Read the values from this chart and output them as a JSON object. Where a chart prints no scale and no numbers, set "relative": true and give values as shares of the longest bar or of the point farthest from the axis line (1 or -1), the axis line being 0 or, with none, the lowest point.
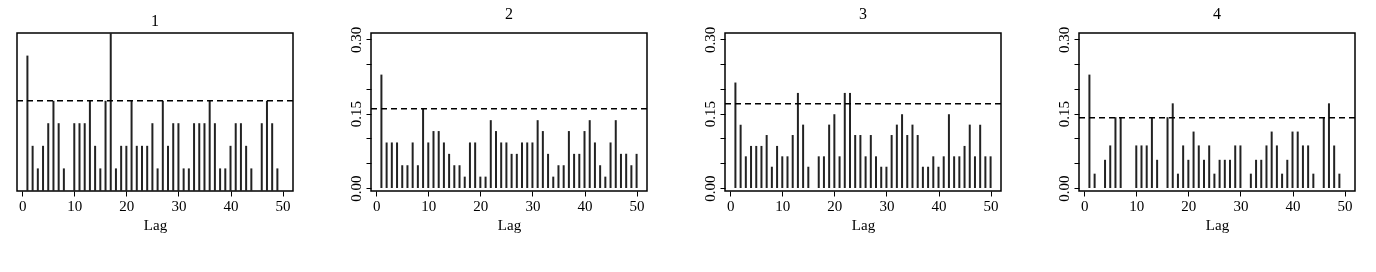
{
  "chart_data": [
    {
      "type": "bar",
      "title": "1",
      "xlabel": "Lag",
      "relative": true,
      "color": "#222222",
      "x": [
        1,
        2,
        3,
        4,
        5,
        6,
        7,
        8,
        9,
        10,
        11,
        12,
        13,
        14,
        15,
        16,
        17,
        18,
        19,
        20,
        21,
        22,
        23,
        24,
        25,
        26,
        27,
        28,
        29,
        30,
        31,
        32,
        33,
        34,
        35,
        36,
        37,
        38,
        39,
        40,
        41,
        42,
        43,
        44,
        45,
        46,
        47,
        48,
        49,
        50
      ],
      "xlim": [
        -1,
        52
      ],
      "xticks": [
        0,
        10,
        20,
        30,
        40,
        50
      ],
      "values": [
        0.857,
        0.286,
        0.143,
        0.286,
        0.429,
        0.571,
        0.429,
        0.143,
        0,
        0.429,
        0.429,
        0.429,
        0.571,
        0.286,
        0.143,
        0.571,
        1,
        0.143,
        0.286,
        0.286,
        0.571,
        0.286,
        0.286,
        0.286,
        0.429,
        0.143,
        0.571,
        0.286,
        0.429,
        0.429,
        0.143,
        0.143,
        0.429,
        0.429,
        0.429,
        0.571,
        0.429,
        0.143,
        0.143,
        0.286,
        0.429,
        0.429,
        0.286,
        0.143,
        0,
        0.429,
        0.571,
        0.429,
        0.143,
        0
      ],
      "ref_lines": [
        {
          "axis": "y",
          "value": 0.571,
          "line_style": "dashed"
        }
      ]
    },
    {
      "type": "bar",
      "title": "2",
      "xlabel": "Lag",
      "color": "#222222",
      "x": [
        1,
        2,
        3,
        4,
        5,
        6,
        7,
        8,
        9,
        10,
        11,
        12,
        13,
        14,
        15,
        16,
        17,
        18,
        19,
        20,
        21,
        22,
        23,
        24,
        25,
        26,
        27,
        28,
        29,
        30,
        31,
        32,
        33,
        34,
        35,
        36,
        37,
        38,
        39,
        40,
        41,
        42,
        43,
        44,
        45,
        46,
        47,
        48,
        49,
        50
      ],
      "xlim": [
        -1,
        52
      ],
      "xticks": [
        0,
        10,
        20,
        30,
        40,
        50
      ],
      "ylim": [
        -0.006,
        0.313
      ],
      "yticks": [
        {
          "value": 0,
          "label": "0.00"
        },
        {
          "value": 0.05,
          "label": null
        },
        {
          "value": 0.1,
          "label": null
        },
        {
          "value": 0.15,
          "label": "0.15"
        },
        {
          "value": 0.2,
          "label": null
        },
        {
          "value": 0.25,
          "label": null
        },
        {
          "value": 0.3,
          "label": "0.30"
        }
      ],
      "values": [
        0.229,
        0.092,
        0.092,
        0.092,
        0.046,
        0.046,
        0.092,
        0.046,
        0.16,
        0.092,
        0.115,
        0.115,
        0.092,
        0.069,
        0.046,
        0.046,
        0.023,
        0.092,
        0.092,
        0.023,
        0.023,
        0.137,
        0.115,
        0.092,
        0.092,
        0.069,
        0.069,
        0.092,
        0.092,
        0.092,
        0.137,
        0.115,
        0.069,
        0.023,
        0.046,
        0.046,
        0.115,
        0.069,
        0.069,
        0.115,
        0.137,
        0.092,
        0.046,
        0.023,
        0.092,
        0.137,
        0.069,
        0.069,
        0.046,
        0.069
      ],
      "ref_lines": [
        {
          "axis": "y",
          "value": 0.16,
          "line_style": "dashed"
        }
      ]
    },
    {
      "type": "bar",
      "title": "3",
      "xlabel": "Lag",
      "color": "#222222",
      "x": [
        1,
        2,
        3,
        4,
        5,
        6,
        7,
        8,
        9,
        10,
        11,
        12,
        13,
        14,
        15,
        16,
        17,
        18,
        19,
        20,
        21,
        22,
        23,
        24,
        25,
        26,
        27,
        28,
        29,
        30,
        31,
        32,
        33,
        34,
        35,
        36,
        37,
        38,
        39,
        40,
        41,
        42,
        43,
        44,
        45,
        46,
        47,
        48,
        49,
        50
      ],
      "xlim": [
        -1,
        52
      ],
      "xticks": [
        0,
        10,
        20,
        30,
        40,
        50
      ],
      "ylim": [
        -0.006,
        0.313
      ],
      "yticks": [
        {
          "value": 0,
          "label": "0.00"
        },
        {
          "value": 0.05,
          "label": null
        },
        {
          "value": 0.1,
          "label": null
        },
        {
          "value": 0.15,
          "label": "0.15"
        },
        {
          "value": 0.2,
          "label": null
        },
        {
          "value": 0.25,
          "label": null
        },
        {
          "value": 0.3,
          "label": "0.30"
        }
      ],
      "values": [
        0.213,
        0.128,
        0.064,
        0.085,
        0.085,
        0.085,
        0.107,
        0.043,
        0.085,
        0.064,
        0.064,
        0.107,
        0.192,
        0.128,
        0.043,
        0,
        0.064,
        0.064,
        0.128,
        0.149,
        0.064,
        0.192,
        0.192,
        0.107,
        0.107,
        0.064,
        0.107,
        0.064,
        0.043,
        0.043,
        0.107,
        0.128,
        0.149,
        0.107,
        0.128,
        0.107,
        0.043,
        0.043,
        0.064,
        0.043,
        0.064,
        0.149,
        0.064,
        0.064,
        0.085,
        0.128,
        0.064,
        0.128,
        0.064,
        0.064
      ],
      "ref_lines": [
        {
          "axis": "y",
          "value": 0.17,
          "line_style": "dashed"
        }
      ]
    },
    {
      "type": "bar",
      "title": "4",
      "xlabel": "Lag",
      "color": "#222222",
      "x": [
        1,
        2,
        3,
        4,
        5,
        6,
        7,
        8,
        9,
        10,
        11,
        12,
        13,
        14,
        15,
        16,
        17,
        18,
        19,
        20,
        21,
        22,
        23,
        24,
        25,
        26,
        27,
        28,
        29,
        30,
        31,
        32,
        33,
        34,
        35,
        36,
        37,
        38,
        39,
        40,
        41,
        42,
        43,
        44,
        45,
        46,
        47,
        48,
        49,
        50
      ],
      "xlim": [
        -1,
        52
      ],
      "xticks": [
        0,
        10,
        20,
        30,
        40,
        50
      ],
      "ylim": [
        -0.006,
        0.313
      ],
      "yticks": [
        {
          "value": 0,
          "label": "0.00"
        },
        {
          "value": 0.05,
          "label": null
        },
        {
          "value": 0.1,
          "label": null
        },
        {
          "value": 0.15,
          "label": "0.15"
        },
        {
          "value": 0.2,
          "label": null
        },
        {
          "value": 0.25,
          "label": null
        },
        {
          "value": 0.3,
          "label": "0.30"
        }
      ],
      "values": [
        0.229,
        0.029,
        0,
        0.057,
        0.086,
        0.143,
        0.143,
        0,
        0,
        0.086,
        0.086,
        0.086,
        0.143,
        0.057,
        0,
        0.143,
        0.171,
        0.029,
        0.086,
        0.057,
        0.114,
        0.086,
        0.057,
        0.086,
        0.029,
        0.057,
        0.057,
        0.057,
        0.086,
        0.086,
        0,
        0.029,
        0.057,
        0.057,
        0.086,
        0.114,
        0.086,
        0.029,
        0.057,
        0.114,
        0.114,
        0.086,
        0.086,
        0.029,
        0,
        0.143,
        0.171,
        0.086,
        0.029,
        0
      ],
      "ref_lines": [
        {
          "axis": "y",
          "value": 0.142,
          "line_style": "dashed"
        }
      ]
    }
  ]
}
